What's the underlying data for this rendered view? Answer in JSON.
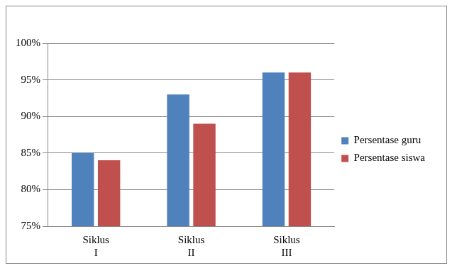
{
  "chart_data": {
    "type": "bar",
    "categories": [
      "Siklus I",
      "Siklus II",
      "Siklus III"
    ],
    "series": [
      {
        "name": "Persentase guru",
        "color": "#4f81bd",
        "values": [
          85,
          93,
          96
        ]
      },
      {
        "name": "Persentase siswa",
        "color": "#c0504d",
        "values": [
          84,
          89,
          96
        ]
      }
    ],
    "ylim": [
      75,
      100
    ],
    "yticks": [
      {
        "value": 75,
        "label": "75%"
      },
      {
        "value": 80,
        "label": "80%"
      },
      {
        "value": 85,
        "label": "85%"
      },
      {
        "value": 90,
        "label": "90%"
      },
      {
        "value": 95,
        "label": "95%"
      },
      {
        "value": 100,
        "label": "100%"
      }
    ],
    "grid": true,
    "legend": "right"
  }
}
